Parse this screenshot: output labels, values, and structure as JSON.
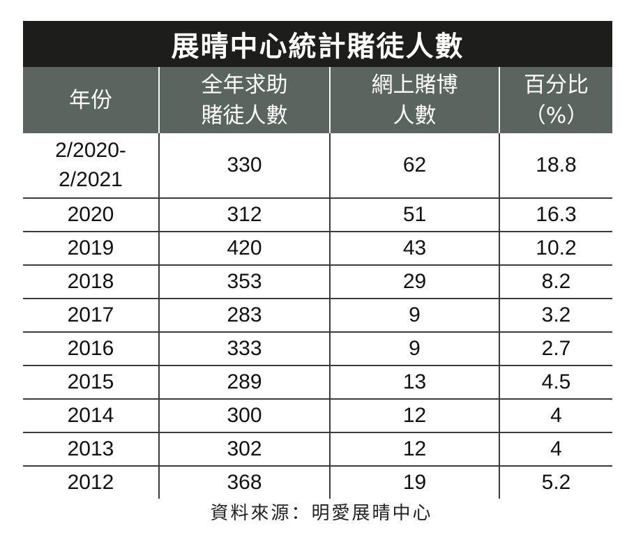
{
  "title": "展晴中心統計賭徒人數",
  "headers": {
    "year": "年份",
    "total_line1": "全年求助",
    "total_line2": "賭徒人數",
    "online_line1": "網上賭博",
    "online_line2": "人數",
    "pct_line1": "百分比",
    "pct_line2": "（%）"
  },
  "rows": [
    {
      "year_line1": "2/2020-",
      "year_line2": "2/2021",
      "total": "330",
      "online": "62",
      "pct": "18.8"
    },
    {
      "year": "2020",
      "total": "312",
      "online": "51",
      "pct": "16.3"
    },
    {
      "year": "2019",
      "total": "420",
      "online": "43",
      "pct": "10.2"
    },
    {
      "year": "2018",
      "total": "353",
      "online": "29",
      "pct": "8.2"
    },
    {
      "year": "2017",
      "total": "283",
      "online": "9",
      "pct": "3.2"
    },
    {
      "year": "2016",
      "total": "333",
      "online": "9",
      "pct": "2.7"
    },
    {
      "year": "2015",
      "total": "289",
      "online": "13",
      "pct": "4.5"
    },
    {
      "year": "2014",
      "total": "300",
      "online": "12",
      "pct": "4"
    },
    {
      "year": "2013",
      "total": "302",
      "online": "12",
      "pct": "4"
    },
    {
      "year": "2012",
      "total": "368",
      "online": "19",
      "pct": "5.2"
    }
  ],
  "source": "資料來源：明愛展晴中心",
  "chart_data": {
    "type": "table",
    "title": "展晴中心統計賭徒人數",
    "columns": [
      "年份",
      "全年求助賭徒人數",
      "網上賭博人數",
      "百分比（%）"
    ],
    "rows": [
      [
        "2/2020-2/2021",
        330,
        62,
        18.8
      ],
      [
        "2020",
        312,
        51,
        16.3
      ],
      [
        "2019",
        420,
        43,
        10.2
      ],
      [
        "2018",
        353,
        29,
        8.2
      ],
      [
        "2017",
        283,
        9,
        3.2
      ],
      [
        "2016",
        333,
        9,
        2.7
      ],
      [
        "2015",
        289,
        13,
        4.5
      ],
      [
        "2014",
        300,
        12,
        4
      ],
      [
        "2013",
        302,
        12,
        4
      ],
      [
        "2012",
        368,
        19,
        5.2
      ]
    ]
  }
}
